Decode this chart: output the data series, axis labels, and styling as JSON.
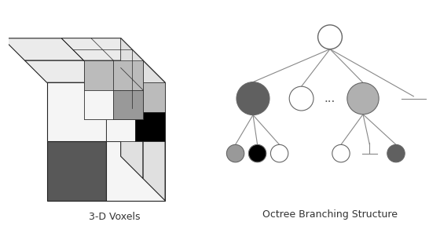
{
  "background_color": "#ffffff",
  "left_label": "3-D Voxels",
  "right_label": "Octree Branching Structure",
  "edge_color": "#222222",
  "edge_lw": 0.8,
  "dark_gray": "#585858",
  "mid_gray": "#999999",
  "light_gray": "#bbbbbb",
  "black": "#000000",
  "white": "#ffffff",
  "face_white": "#f5f5f5",
  "face_top": "#ebebeb",
  "face_right": "#e0e0e0",
  "line_color": "#888888",
  "label_fontsize": 9,
  "tree_line_lw": 0.8,
  "tree_edge_color": "#666666"
}
